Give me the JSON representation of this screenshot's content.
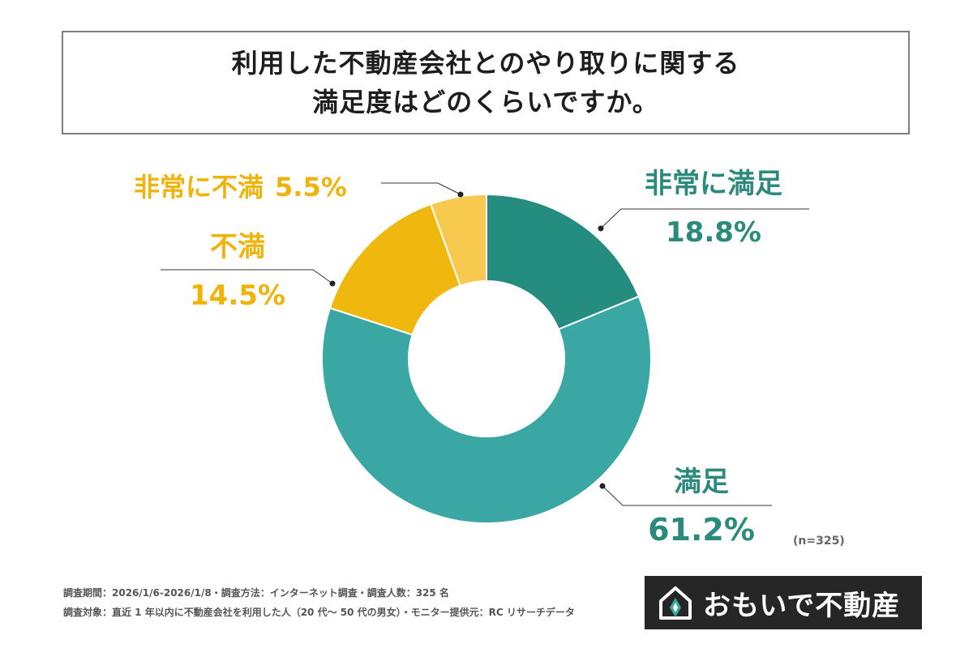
{
  "title": {
    "line1": "利用した不動産会社とのやり取りに関する",
    "line2": "満足度はどのくらいですか。"
  },
  "chart_data": {
    "type": "pie",
    "donut": true,
    "labels": [
      "非常に満足",
      "満足",
      "不満",
      "非常に不満"
    ],
    "values": [
      18.8,
      61.2,
      14.5,
      5.5
    ],
    "value_labels": [
      "18.8%",
      "61.2%",
      "14.5%",
      "5.5%"
    ],
    "colors": [
      "#258c80",
      "#3ba7a5",
      "#f0b70f",
      "#f7c94f"
    ],
    "label_colors": [
      "#2b8a7c",
      "#2b8a7c",
      "#f0b30a",
      "#f0b30a"
    ],
    "start": "12 o'clock, clockwise"
  },
  "sample_size": "(n=325)",
  "footnotes": {
    "line1": "調査期間：2026/1/6-2026/1/8・調査方法：インターネット調査・調査人数：325 名",
    "line2": "調査対象：直近 1 年以内に不動産会社を利用した人（20 代〜 50 代の男女）・モニター提供元：RC リサーチデータ"
  },
  "logo": {
    "text": "おもいで不動産",
    "icon": "house-icon"
  }
}
